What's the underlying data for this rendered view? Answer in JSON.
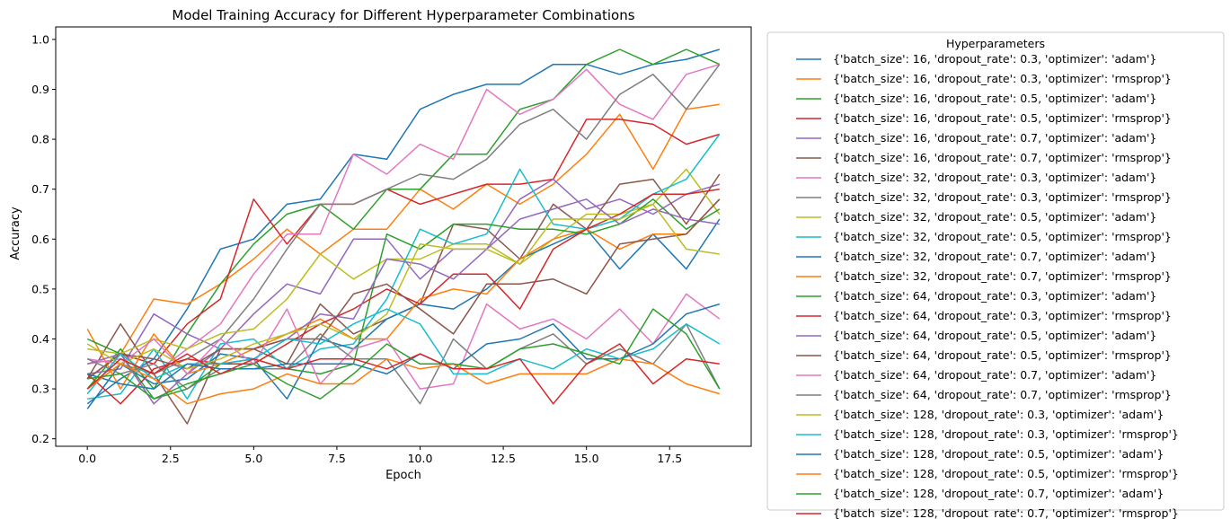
{
  "chart_data": {
    "type": "line",
    "title": "Model Training Accuracy for Different Hyperparameter Combinations",
    "xlabel": "Epoch",
    "ylabel": "Accuracy",
    "xlim": [
      -0.95,
      19.95
    ],
    "ylim": [
      0.185,
      1.025
    ],
    "xticks": [
      0.0,
      2.5,
      5.0,
      7.5,
      10.0,
      12.5,
      15.0,
      17.5
    ],
    "xtick_labels": [
      "0.0",
      "2.5",
      "5.0",
      "7.5",
      "10.0",
      "12.5",
      "15.0",
      "17.5"
    ],
    "yticks": [
      0.2,
      0.3,
      0.4,
      0.5,
      0.6,
      0.7,
      0.8,
      0.9,
      1.0
    ],
    "ytick_labels": [
      "0.2",
      "0.3",
      "0.4",
      "0.5",
      "0.6",
      "0.7",
      "0.8",
      "0.9",
      "1.0"
    ],
    "grid": false,
    "legend_title": "Hyperparameters",
    "legend_position": "outside-right",
    "x": [
      0,
      1,
      2,
      3,
      4,
      5,
      6,
      7,
      8,
      9,
      10,
      11,
      12,
      13,
      14,
      15,
      16,
      17,
      18,
      19
    ],
    "series": [
      {
        "name": "{'batch_size': 16, 'dropout_rate': 0.3, 'optimizer': 'adam'}",
        "color": "#1f77b4",
        "values": [
          0.27,
          0.32,
          0.36,
          0.46,
          0.58,
          0.6,
          0.67,
          0.68,
          0.77,
          0.76,
          0.86,
          0.89,
          0.91,
          0.91,
          0.95,
          0.95,
          0.93,
          0.95,
          0.96,
          0.98
        ]
      },
      {
        "name": "{'batch_size': 16, 'dropout_rate': 0.3, 'optimizer': 'rmsprop'}",
        "color": "#ff7f0e",
        "values": [
          0.32,
          0.37,
          0.48,
          0.47,
          0.51,
          0.56,
          0.62,
          0.57,
          0.62,
          0.62,
          0.7,
          0.66,
          0.71,
          0.67,
          0.71,
          0.77,
          0.85,
          0.74,
          0.86,
          0.87
        ]
      },
      {
        "name": "{'batch_size': 16, 'dropout_rate': 0.5, 'optimizer': 'adam'}",
        "color": "#2ca02c",
        "values": [
          0.3,
          0.38,
          0.3,
          0.41,
          0.51,
          0.59,
          0.65,
          0.67,
          0.62,
          0.7,
          0.7,
          0.77,
          0.77,
          0.86,
          0.88,
          0.95,
          0.98,
          0.95,
          0.98,
          0.95
        ]
      },
      {
        "name": "{'batch_size': 16, 'dropout_rate': 0.5, 'optimizer': 'rmsprop'}",
        "color": "#d62728",
        "values": [
          0.32,
          0.37,
          0.35,
          0.43,
          0.48,
          0.68,
          0.59,
          0.67,
          0.67,
          0.7,
          0.67,
          0.69,
          0.71,
          0.71,
          0.72,
          0.84,
          0.84,
          0.83,
          0.79,
          0.81
        ]
      },
      {
        "name": "{'batch_size': 16, 'dropout_rate': 0.7, 'optimizer': 'adam'}",
        "color": "#9467bd",
        "values": [
          0.33,
          0.34,
          0.45,
          0.41,
          0.38,
          0.45,
          0.51,
          0.49,
          0.6,
          0.6,
          0.52,
          0.58,
          0.58,
          0.68,
          0.72,
          0.66,
          0.68,
          0.65,
          0.69,
          0.71
        ]
      },
      {
        "name": "{'batch_size': 16, 'dropout_rate': 0.7, 'optimizer': 'rmsprop'}",
        "color": "#8c564b",
        "values": [
          0.32,
          0.43,
          0.33,
          0.23,
          0.38,
          0.38,
          0.35,
          0.47,
          0.41,
          0.44,
          0.47,
          0.63,
          0.62,
          0.56,
          0.67,
          0.62,
          0.71,
          0.72,
          0.63,
          0.73
        ]
      },
      {
        "name": "{'batch_size': 32, 'dropout_rate': 0.3, 'optimizer': 'adam'}",
        "color": "#e377c2",
        "values": [
          0.35,
          0.36,
          0.33,
          0.38,
          0.43,
          0.53,
          0.61,
          0.61,
          0.77,
          0.73,
          0.79,
          0.76,
          0.9,
          0.85,
          0.88,
          0.94,
          0.87,
          0.84,
          0.93,
          0.95
        ]
      },
      {
        "name": "{'batch_size': 32, 'dropout_rate': 0.3, 'optimizer': 'rmsprop'}",
        "color": "#7f7f7f",
        "values": [
          0.3,
          0.35,
          0.33,
          0.36,
          0.4,
          0.48,
          0.58,
          0.67,
          0.67,
          0.7,
          0.73,
          0.72,
          0.76,
          0.83,
          0.86,
          0.8,
          0.89,
          0.93,
          0.86,
          0.95
        ]
      },
      {
        "name": "{'batch_size': 32, 'dropout_rate': 0.5, 'optimizer': 'adam'}",
        "color": "#bcbd22",
        "values": [
          0.38,
          0.37,
          0.4,
          0.38,
          0.41,
          0.42,
          0.48,
          0.57,
          0.52,
          0.56,
          0.56,
          0.59,
          0.59,
          0.55,
          0.6,
          0.65,
          0.65,
          0.67,
          0.74,
          0.65
        ]
      },
      {
        "name": "{'batch_size': 32, 'dropout_rate': 0.5, 'optimizer': 'rmsprop'}",
        "color": "#17becf",
        "values": [
          0.28,
          0.29,
          0.38,
          0.28,
          0.39,
          0.4,
          0.34,
          0.38,
          0.39,
          0.48,
          0.62,
          0.59,
          0.61,
          0.74,
          0.63,
          0.62,
          0.64,
          0.69,
          0.72,
          0.81
        ]
      },
      {
        "name": "{'batch_size': 32, 'dropout_rate': 0.7, 'optimizer': 'adam'}",
        "color": "#1f77b4",
        "values": [
          0.26,
          0.35,
          0.31,
          0.32,
          0.37,
          0.36,
          0.28,
          0.4,
          0.38,
          0.44,
          0.47,
          0.46,
          0.5,
          0.56,
          0.59,
          0.62,
          0.54,
          0.61,
          0.54,
          0.64
        ]
      },
      {
        "name": "{'batch_size': 32, 'dropout_rate': 0.7, 'optimizer': 'rmsprop'}",
        "color": "#ff7f0e",
        "values": [
          0.42,
          0.3,
          0.41,
          0.33,
          0.35,
          0.38,
          0.41,
          0.44,
          0.4,
          0.4,
          0.48,
          0.5,
          0.49,
          0.56,
          0.6,
          0.62,
          0.58,
          0.61,
          0.61,
          0.68
        ]
      },
      {
        "name": "{'batch_size': 64, 'dropout_rate': 0.3, 'optimizer': 'adam'}",
        "color": "#2ca02c",
        "values": [
          0.4,
          0.37,
          0.28,
          0.3,
          0.35,
          0.36,
          0.34,
          0.33,
          0.35,
          0.61,
          0.58,
          0.63,
          0.63,
          0.62,
          0.62,
          0.61,
          0.63,
          0.68,
          0.62,
          0.66
        ]
      },
      {
        "name": "{'batch_size': 64, 'dropout_rate': 0.3, 'optimizer': 'rmsprop'}",
        "color": "#d62728",
        "values": [
          0.33,
          0.27,
          0.34,
          0.36,
          0.35,
          0.35,
          0.39,
          0.43,
          0.46,
          0.5,
          0.47,
          0.53,
          0.53,
          0.46,
          0.58,
          0.62,
          0.65,
          0.69,
          0.69,
          0.7
        ]
      },
      {
        "name": "{'batch_size': 64, 'dropout_rate': 0.5, 'optimizer': 'adam'}",
        "color": "#9467bd",
        "values": [
          0.35,
          0.37,
          0.27,
          0.33,
          0.38,
          0.38,
          0.4,
          0.45,
          0.44,
          0.56,
          0.55,
          0.52,
          0.58,
          0.64,
          0.66,
          0.68,
          0.63,
          0.66,
          0.64,
          0.63
        ]
      },
      {
        "name": "{'batch_size': 64, 'dropout_rate': 0.5, 'optimizer': 'rmsprop'}",
        "color": "#8c564b",
        "values": [
          0.32,
          0.37,
          0.36,
          0.34,
          0.38,
          0.38,
          0.4,
          0.4,
          0.49,
          0.51,
          0.46,
          0.41,
          0.51,
          0.51,
          0.52,
          0.49,
          0.59,
          0.6,
          0.61,
          0.68
        ]
      },
      {
        "name": "{'batch_size': 64, 'dropout_rate': 0.7, 'optimizer': 'adam'}",
        "color": "#e377c2",
        "values": [
          0.36,
          0.35,
          0.4,
          0.33,
          0.4,
          0.35,
          0.46,
          0.31,
          0.38,
          0.4,
          0.3,
          0.31,
          0.47,
          0.42,
          0.44,
          0.4,
          0.46,
          0.39,
          0.49,
          0.44
        ]
      },
      {
        "name": "{'batch_size': 64, 'dropout_rate': 0.7, 'optimizer': 'rmsprop'}",
        "color": "#7f7f7f",
        "values": [
          0.36,
          0.33,
          0.35,
          0.3,
          0.34,
          0.34,
          0.34,
          0.41,
          0.36,
          0.36,
          0.27,
          0.4,
          0.34,
          0.38,
          0.41,
          0.35,
          0.38,
          0.35,
          0.43,
          0.3
        ]
      },
      {
        "name": "{'batch_size': 128, 'dropout_rate': 0.3, 'optimizer': 'adam'}",
        "color": "#bcbd22",
        "values": [
          0.39,
          0.35,
          0.38,
          0.34,
          0.36,
          0.39,
          0.41,
          0.43,
          0.4,
          0.45,
          0.59,
          0.58,
          0.58,
          0.55,
          0.64,
          0.64,
          0.64,
          0.67,
          0.58,
          0.57
        ]
      },
      {
        "name": "{'batch_size': 128, 'dropout_rate': 0.3, 'optimizer': 'rmsprop'}",
        "color": "#17becf",
        "values": [
          0.29,
          0.37,
          0.32,
          0.35,
          0.35,
          0.36,
          0.4,
          0.39,
          0.43,
          0.46,
          0.43,
          0.33,
          0.33,
          0.36,
          0.34,
          0.38,
          0.36,
          0.38,
          0.43,
          0.39
        ]
      },
      {
        "name": "{'batch_size': 128, 'dropout_rate': 0.5, 'optimizer': 'adam'}",
        "color": "#1f77b4",
        "values": [
          0.33,
          0.31,
          0.3,
          0.35,
          0.34,
          0.34,
          0.35,
          0.35,
          0.35,
          0.33,
          0.37,
          0.34,
          0.39,
          0.4,
          0.43,
          0.36,
          0.36,
          0.39,
          0.45,
          0.47
        ]
      },
      {
        "name": "{'batch_size': 128, 'dropout_rate': 0.5, 'optimizer': 'rmsprop'}",
        "color": "#ff7f0e",
        "values": [
          0.3,
          0.35,
          0.32,
          0.27,
          0.29,
          0.3,
          0.33,
          0.31,
          0.31,
          0.36,
          0.34,
          0.35,
          0.31,
          0.33,
          0.33,
          0.33,
          0.36,
          0.35,
          0.31,
          0.29
        ]
      },
      {
        "name": "{'batch_size': 128, 'dropout_rate': 0.7, 'optimizer': 'adam'}",
        "color": "#2ca02c",
        "values": [
          0.32,
          0.33,
          0.28,
          0.31,
          0.33,
          0.35,
          0.31,
          0.28,
          0.33,
          0.39,
          0.35,
          0.35,
          0.34,
          0.38,
          0.39,
          0.37,
          0.35,
          0.46,
          0.41,
          0.3
        ]
      },
      {
        "name": "{'batch_size': 128, 'dropout_rate': 0.7, 'optimizer': 'rmsprop'}",
        "color": "#d62728",
        "values": [
          0.3,
          0.36,
          0.33,
          0.37,
          0.33,
          0.36,
          0.34,
          0.36,
          0.36,
          0.34,
          0.37,
          0.34,
          0.34,
          0.36,
          0.27,
          0.35,
          0.39,
          0.31,
          0.36,
          0.35
        ]
      }
    ]
  }
}
